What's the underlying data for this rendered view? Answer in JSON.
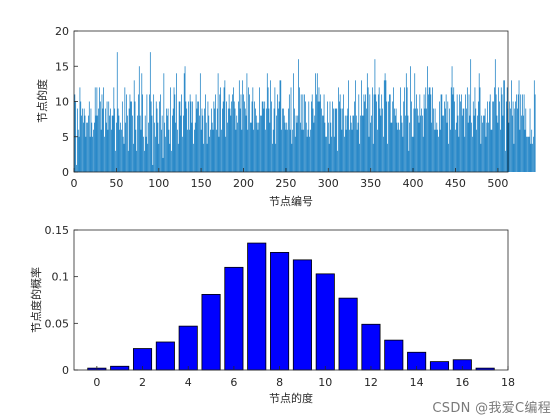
{
  "chart_data": [
    {
      "type": "bar",
      "xlabel": "节点编号",
      "ylabel": "节点的度",
      "xlim": [
        0,
        512
      ],
      "ylim": [
        0,
        20
      ],
      "xticks": [
        "0",
        "50",
        "100",
        "150",
        "200",
        "250",
        "300",
        "350",
        "400",
        "450",
        "500"
      ],
      "yticks": [
        "0",
        "5",
        "10",
        "15",
        "20"
      ],
      "color": "#0072BD",
      "grid": false,
      "values": [
        11,
        10,
        1,
        9,
        6,
        5,
        12,
        10,
        8,
        9,
        7,
        9,
        8,
        5,
        7,
        7,
        8,
        10,
        5,
        9,
        7,
        5,
        6,
        7,
        12,
        8,
        12,
        8,
        9,
        12,
        10,
        6,
        11,
        9,
        12,
        5,
        9,
        7,
        10,
        6,
        10,
        8,
        9,
        6,
        8,
        8,
        12,
        9,
        3,
        7,
        17,
        9,
        8,
        6,
        7,
        6,
        10,
        5,
        4,
        12,
        7,
        11,
        8,
        3,
        9,
        11,
        10,
        10,
        8,
        4,
        13,
        10,
        6,
        3,
        8,
        11,
        15,
        8,
        6,
        14,
        11,
        5,
        3,
        8,
        5,
        11,
        4,
        7,
        11,
        17,
        10,
        8,
        1,
        11,
        7,
        5,
        10,
        9,
        7,
        4,
        10,
        11,
        6,
        8,
        2,
        14,
        7,
        5,
        9,
        8,
        9,
        6,
        4,
        12,
        3,
        8,
        9,
        12,
        11,
        7,
        14,
        6,
        4,
        10,
        10,
        8,
        11,
        5,
        8,
        14,
        15,
        10,
        9,
        6,
        10,
        6,
        11,
        10,
        7,
        10,
        4,
        6,
        7,
        11,
        9,
        10,
        10,
        8,
        14,
        6,
        9,
        8,
        4,
        9,
        11,
        7,
        4,
        10,
        8,
        5,
        6,
        9,
        7,
        6,
        10,
        9,
        11,
        6,
        9,
        14,
        5,
        11,
        12,
        6,
        9,
        10,
        12,
        13,
        5,
        10,
        7,
        9,
        11,
        9,
        8,
        10,
        11,
        12,
        10,
        9,
        6,
        8,
        7,
        10,
        13,
        9,
        11,
        6,
        13,
        11,
        10,
        9,
        8,
        14,
        6,
        12,
        11,
        7,
        7,
        10,
        12,
        6,
        10,
        9,
        8,
        7,
        6,
        7,
        12,
        8,
        8,
        10,
        10,
        9,
        10,
        6,
        9,
        14,
        12,
        9,
        7,
        13,
        10,
        4,
        6,
        9,
        12,
        4,
        8,
        11,
        9,
        10,
        13,
        13,
        6,
        9,
        9,
        8,
        7,
        6,
        7,
        6,
        9,
        11,
        6,
        12,
        4,
        6,
        14,
        9,
        5,
        8,
        7,
        8,
        16,
        12,
        7,
        11,
        6,
        11,
        6,
        11,
        10,
        7,
        5,
        6,
        10,
        5,
        6,
        10,
        11,
        9,
        7,
        8,
        14,
        11,
        14,
        10,
        12,
        10,
        11,
        9,
        8,
        8,
        11,
        7,
        5,
        5,
        10,
        7,
        4,
        10,
        7,
        5,
        10,
        9,
        5,
        9,
        9,
        9,
        3,
        12,
        10,
        11,
        9,
        6,
        9,
        11,
        5,
        8,
        6,
        8,
        9,
        13,
        6,
        8,
        7,
        6,
        8,
        8,
        10,
        13,
        8,
        6,
        7,
        11,
        4,
        8,
        13,
        8,
        8,
        11,
        10,
        11,
        9,
        14,
        12,
        5,
        11,
        7,
        8,
        12,
        4,
        11,
        16,
        11,
        10,
        6,
        11,
        12,
        9,
        8,
        11,
        9,
        5,
        13,
        14,
        13,
        10,
        4,
        10,
        11,
        11,
        7,
        7,
        10,
        12,
        9,
        8,
        9,
        7,
        6,
        7,
        6,
        12,
        8,
        7,
        5,
        10,
        12,
        8,
        14,
        12,
        8,
        3,
        7,
        15,
        10,
        5,
        5,
        9,
        14,
        9,
        11,
        9,
        8,
        7,
        11,
        8,
        9,
        8,
        5,
        11,
        9,
        12,
        9,
        15,
        11,
        12,
        12,
        11,
        7,
        12,
        9,
        6,
        9,
        6,
        7,
        6,
        5,
        10,
        6,
        11,
        11,
        8,
        8,
        10,
        9,
        11,
        7,
        10,
        4,
        9,
        6,
        12,
        15,
        11,
        12,
        10,
        6,
        7,
        11,
        8,
        5,
        11,
        10,
        11,
        8,
        9,
        9,
        5,
        11,
        9,
        12,
        7,
        11,
        8,
        16,
        7,
        5,
        10,
        8,
        12,
        9,
        6,
        8,
        10,
        14,
        12,
        4,
        8,
        7,
        8,
        8,
        9,
        5,
        7,
        10,
        7,
        10,
        11,
        6,
        6,
        10,
        10,
        12,
        16,
        11,
        8,
        7,
        12,
        10,
        6,
        12,
        11,
        8,
        13,
        13,
        3,
        10,
        12,
        9,
        7,
        10,
        9,
        13,
        8,
        10,
        4,
        9,
        10,
        11,
        9,
        11,
        13,
        6,
        11,
        8,
        11,
        8,
        11,
        6,
        9,
        5,
        5,
        5,
        5,
        9,
        4,
        6,
        4,
        5,
        13,
        11
      ]
    },
    {
      "type": "bar",
      "xlabel": "节点的度",
      "ylabel": "节点度的概率",
      "xlim": [
        -1,
        18
      ],
      "ylim": [
        0,
        0.15
      ],
      "xticks": [
        "0",
        "2",
        "4",
        "6",
        "8",
        "10",
        "12",
        "14",
        "16",
        "18"
      ],
      "yticks": [
        "0",
        "0.05",
        "0.1",
        "0.15"
      ],
      "color": "#0000FF",
      "grid": false,
      "categories": [
        0,
        1,
        2,
        3,
        4,
        5,
        6,
        7,
        8,
        9,
        10,
        11,
        12,
        13,
        14,
        15,
        16,
        17
      ],
      "values": [
        0.002,
        0.004,
        0.023,
        0.03,
        0.047,
        0.081,
        0.11,
        0.136,
        0.126,
        0.118,
        0.103,
        0.077,
        0.049,
        0.032,
        0.019,
        0.009,
        0.011,
        0.002
      ]
    }
  ],
  "watermark": "CSDN @我爱C编程"
}
